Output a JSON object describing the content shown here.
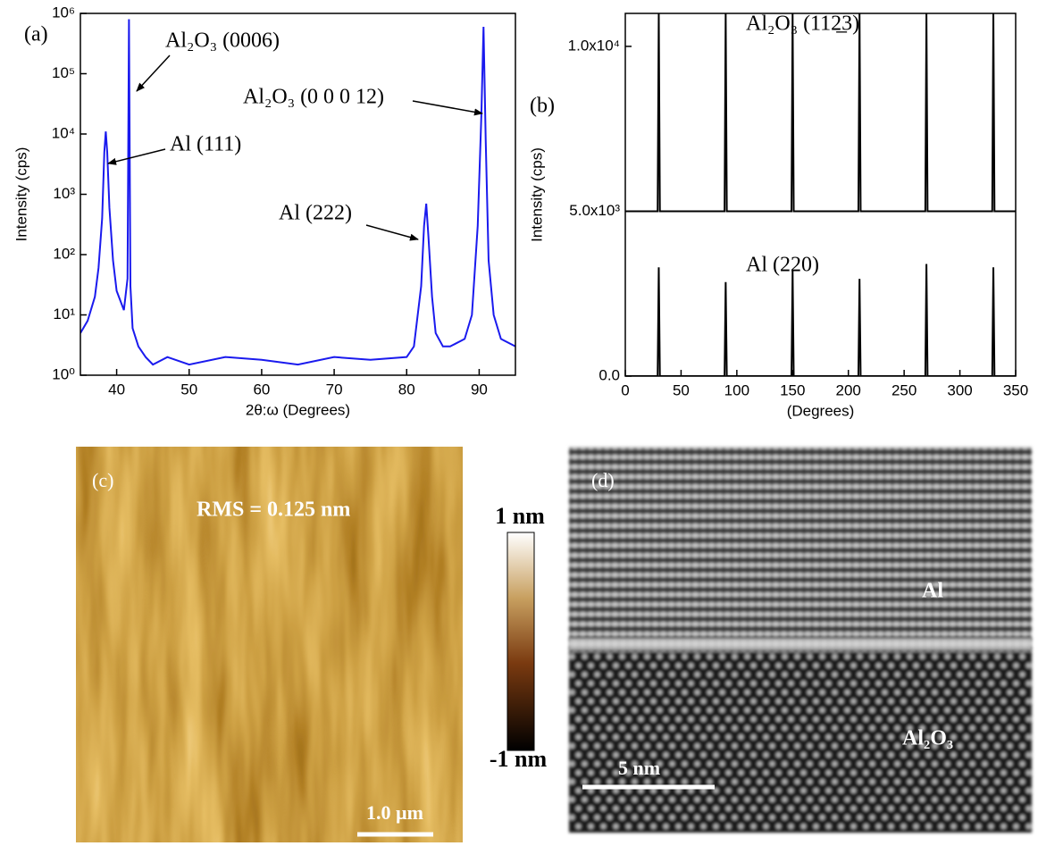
{
  "chart_data": [
    {
      "type": "line",
      "label": "(a)",
      "xlabel": "2θ:ω (Degrees)",
      "ylabel": "Intensity (cps)",
      "x": [
        35,
        36,
        37,
        37.5,
        38,
        38.3,
        38.5,
        38.7,
        39,
        39.5,
        40,
        41,
        41.5,
        41.7,
        41.9,
        42.2,
        43,
        44,
        45,
        47,
        50,
        55,
        60,
        65,
        70,
        75,
        80,
        81,
        82,
        82.4,
        82.7,
        83,
        83.5,
        84,
        85,
        86,
        88,
        89,
        89.8,
        90.3,
        90.6,
        90.9,
        91.3,
        92,
        93,
        95
      ],
      "series": [
        {
          "color": "#1a1aee",
          "values": [
            5,
            8,
            20,
            60,
            400,
            5000,
            11000,
            5000,
            600,
            80,
            25,
            12,
            40,
            800000,
            30,
            6,
            3,
            2,
            1.5,
            2,
            1.5,
            2,
            1.8,
            1.5,
            2,
            1.8,
            2,
            3,
            30,
            300,
            700,
            200,
            20,
            5,
            3,
            3,
            4,
            10,
            300,
            20000,
            600000,
            8000,
            80,
            10,
            4,
            3
          ]
        }
      ],
      "xlim": [
        35,
        95
      ],
      "ylim": [
        1,
        1000000
      ],
      "log_y": true,
      "xticks": [
        40,
        50,
        60,
        70,
        80,
        90
      ],
      "yticks": [
        {
          "value": 1,
          "label": "10⁰"
        },
        {
          "value": 10,
          "label": "10¹"
        },
        {
          "value": 100,
          "label": "10²"
        },
        {
          "value": 1000,
          "label": "10³"
        },
        {
          "value": 10000,
          "label": "10⁴"
        },
        {
          "value": 100000,
          "label": "10⁵"
        },
        {
          "value": 1000000,
          "label": "10⁶"
        }
      ],
      "annotations": [
        "Al₂O₃ (0006)",
        "Al₂O₃ (0 0 0 12)",
        "Al (111)",
        "Al (222)"
      ]
    },
    {
      "type": "line",
      "label": "(b)",
      "xlabel": "(Degrees)",
      "ylabel": "Intensity (cps)",
      "x": [
        0,
        29,
        30,
        31,
        89,
        90,
        91,
        149,
        150,
        151,
        209,
        210,
        211,
        269,
        270,
        271,
        329,
        330,
        331,
        350
      ],
      "series": [
        {
          "name": "Al₂O₃ (112̲3)",
          "color": "#000000",
          "values": [
            5000,
            5000,
            11000,
            5000,
            5000,
            11000,
            5000,
            5000,
            11000,
            5000,
            5000,
            11000,
            5000,
            5000,
            11000,
            5000,
            5000,
            11000,
            5000,
            5000
          ]
        },
        {
          "name": "Al (220)",
          "color": "#000000",
          "values": [
            0,
            0,
            3300,
            0,
            0,
            2850,
            0,
            0,
            3200,
            0,
            0,
            2950,
            0,
            0,
            3400,
            0,
            0,
            3300,
            0,
            0
          ]
        }
      ],
      "xlim": [
        0,
        350
      ],
      "ylim": [
        0,
        11000
      ],
      "log_y": false,
      "xticks": [
        0,
        50,
        100,
        150,
        200,
        250,
        300,
        350
      ],
      "yticks": [
        {
          "value": 0,
          "label": "0.0"
        },
        {
          "value": 5000,
          "label": "5.0x10³"
        },
        {
          "value": 10000,
          "label": "1.0x10⁴"
        }
      ]
    }
  ],
  "images": [
    {
      "label": "(c)",
      "annotation": "RMS = 0.125 nm",
      "colorbar": {
        "max_label": "1 nm",
        "min_label": "-1 nm"
      },
      "scale_bar": "1.0 µm"
    },
    {
      "label": "(d)",
      "regions": [
        "Al",
        "Al₂O₃"
      ],
      "scale_bar": "5 nm"
    }
  ]
}
